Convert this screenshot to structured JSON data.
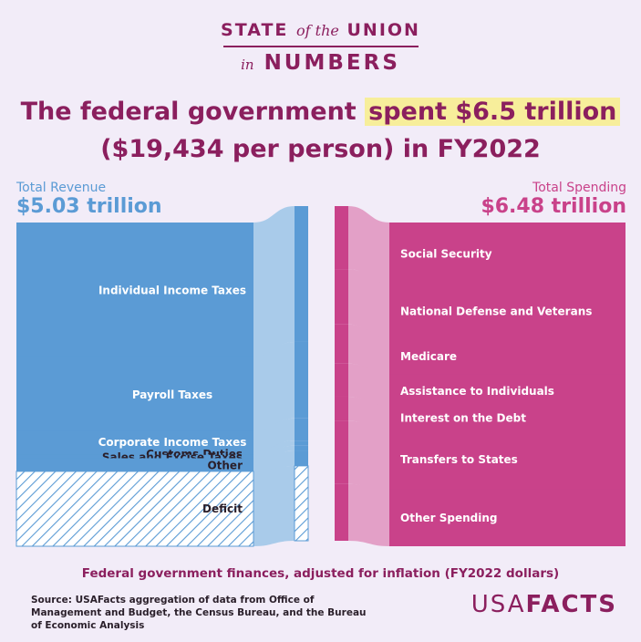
{
  "brand": {
    "state": "STATE",
    "of_the": "of the",
    "union": "UNION",
    "in": "in",
    "numbers": "NUMBERS"
  },
  "headline": {
    "pre": "The federal government ",
    "highlight": "spent $6.5 trillion",
    "line2": "($19,434 per person) in FY2022"
  },
  "colors": {
    "revenue": "#5b9bd5",
    "revenue_light": "#a9cbea",
    "spending": "#c9428a",
    "spending_light": "#e3a0c7",
    "title": "#8b1f5e",
    "highlight": "#f7ee9b"
  },
  "chart_data": {
    "type": "sankey",
    "units": "trillions of FY2022 dollars (values estimated from bar sizes)",
    "revenue": {
      "label": "Total Revenue",
      "total_text": "$5.03 trillion",
      "total": 5.03,
      "items": [
        {
          "name": "Individual Income Taxes",
          "value": 2.63
        },
        {
          "name": "Payroll Taxes",
          "value": 1.48
        },
        {
          "name": "Corporate Income Taxes",
          "value": 0.43
        },
        {
          "name": "Customs Duties",
          "value": 0.1
        },
        {
          "name": "Sales and Excise Taxes",
          "value": 0.1
        },
        {
          "name": "Other",
          "value": 0.29
        },
        {
          "name": "Deficit",
          "value": 1.45,
          "hatched": true
        }
      ]
    },
    "spending": {
      "label": "Total Spending",
      "total_text": "$6.48 trillion",
      "total": 6.48,
      "items": [
        {
          "name": "Social Security",
          "value": 1.22
        },
        {
          "name": "National Defense and Veterans",
          "value": 1.07
        },
        {
          "name": "Medicare",
          "value": 0.76
        },
        {
          "name": "Assistance to Individuals",
          "value": 0.64
        },
        {
          "name": "Interest on the Debt",
          "value": 0.47
        },
        {
          "name": "Transfers to States",
          "value": 1.22
        },
        {
          "name": "Other Spending",
          "value": 1.1
        }
      ]
    }
  },
  "caption": "Federal government finances, adjusted for inflation (FY2022 dollars)",
  "source": "Source: USAFacts aggregation of data from Office of Management and Budget, the Census Bureau, and the Bureau of Economic Analysis",
  "logo": {
    "light": "USA",
    "bold": "FACTS"
  }
}
